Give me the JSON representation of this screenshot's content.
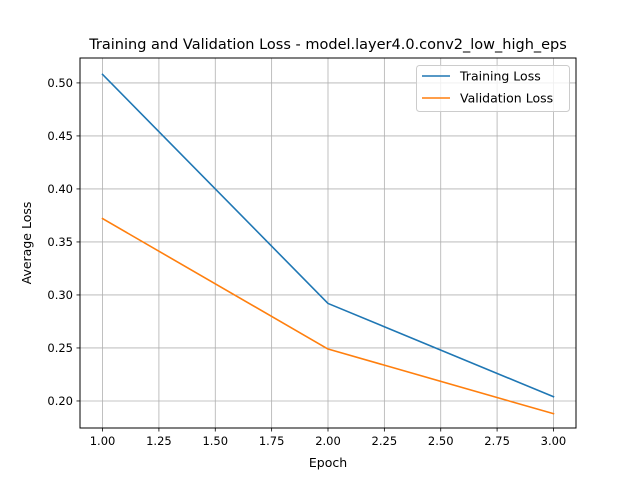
{
  "chart_data": {
    "type": "line",
    "title": "Training and Validation Loss - model.layer4.0.conv2_low_high_eps",
    "xlabel": "Epoch",
    "ylabel": "Average Loss",
    "x": [
      1.0,
      2.0,
      3.0
    ],
    "xlim": [
      0.9,
      3.1
    ],
    "ylim": [
      0.1745,
      0.5235
    ],
    "xticks": [
      "1.00",
      "1.25",
      "1.50",
      "1.75",
      "2.00",
      "2.25",
      "2.50",
      "2.75",
      "3.00"
    ],
    "yticks": [
      "0.20",
      "0.25",
      "0.30",
      "0.35",
      "0.40",
      "0.45",
      "0.50"
    ],
    "grid": true,
    "legend_position": "top-right",
    "series": [
      {
        "name": "Training Loss",
        "color": "#1f77b4",
        "values": [
          0.508,
          0.292,
          0.204
        ]
      },
      {
        "name": "Validation Loss",
        "color": "#ff7f0e",
        "values": [
          0.372,
          0.249,
          0.188
        ]
      }
    ]
  }
}
